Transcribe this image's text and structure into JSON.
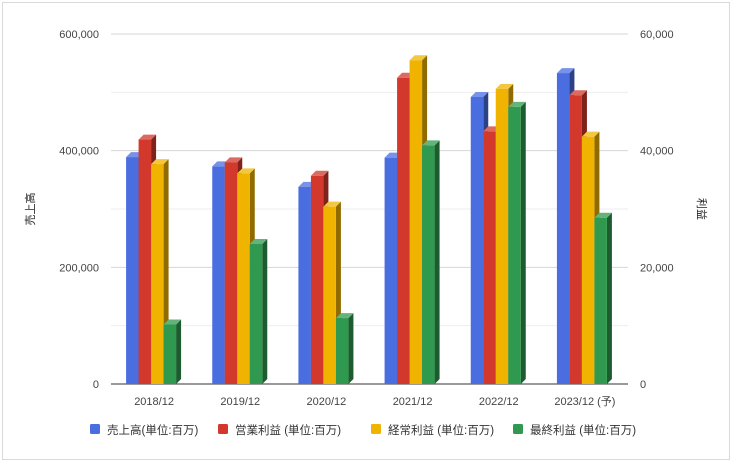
{
  "chart_data": {
    "type": "bar",
    "categories": [
      "2018/12",
      "2019/12",
      "2020/12",
      "2021/12",
      "2022/12",
      "2023/12 (予)"
    ],
    "series": [
      {
        "name": "売上高(単位:百万)",
        "axis": "left",
        "color": "#4a6ee0",
        "values": [
          389000,
          373000,
          338000,
          388000,
          492000,
          533000
        ]
      },
      {
        "name": "営業利益 (単位:百万)",
        "axis": "right",
        "color": "#d2382c",
        "values": [
          41900,
          38000,
          35700,
          52500,
          43300,
          49500
        ]
      },
      {
        "name": "経常利益 (単位:百万)",
        "axis": "right",
        "color": "#f0b400",
        "values": [
          37700,
          36100,
          30400,
          55500,
          50600,
          42400
        ]
      },
      {
        "name": "最終利益 (単位:百万)",
        "axis": "right",
        "color": "#2f9a4f",
        "values": [
          10200,
          24000,
          11300,
          40900,
          47500,
          28500
        ]
      }
    ],
    "y_left": {
      "label": "売上高",
      "min": 0,
      "max": 600000,
      "ticks": [
        "0",
        "200,000",
        "400,000",
        "600,000"
      ]
    },
    "y_right": {
      "label": "利益",
      "min": 0,
      "max": 60000,
      "ticks": [
        "0",
        "20,000",
        "40,000",
        "60,000"
      ]
    },
    "grid": true,
    "legend_position": "bottom",
    "style": "3d-bars"
  }
}
